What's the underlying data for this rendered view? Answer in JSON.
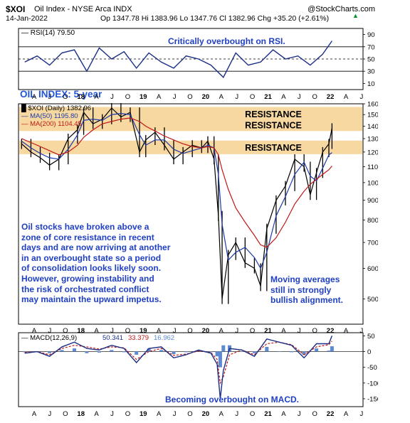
{
  "header": {
    "symbol": "$XOI",
    "name": "Oil Index - NYSE Arca INDX",
    "source": "@StockCharts.com",
    "date": "14-Jan-2022",
    "quote": "Op 1347.78  Hi 1383.96  Lo 1347.76  Cl 1382.96  Chg +35.20 (+2.61%)",
    "quote_marker": "▲"
  },
  "colors": {
    "price": "#000000",
    "ma50": "#1e3aa8",
    "ma200": "#c01818",
    "rsi": "#1a2e86",
    "macd": "#1a2e86",
    "signal": "#c01818",
    "hist": "#5e8ad2",
    "resistance": "#f6d8a0",
    "annotation": "#1f3fc4",
    "chart_title": "#2454d6"
  },
  "panels": {
    "rsi": {
      "legend": "RSI(14) 79.50",
      "note": "Critically overbought on RSI.",
      "ticks": [
        "90",
        "70",
        "50",
        "30",
        "10"
      ]
    },
    "price": {
      "title": "OIL INDEX: 5-year",
      "legend": [
        "$XOI (Daily) 1382.96",
        "MA(50) 1195.80",
        "MA(200) 1104.45"
      ],
      "zone_labels": [
        "RESISTANCE",
        "RESISTANCE",
        "RESISTANCE"
      ],
      "ticks": [
        "1600",
        "1500",
        "1400",
        "1300",
        "1200",
        "1100",
        "1000",
        "900",
        "800",
        "700",
        "600",
        "500"
      ],
      "note_left": [
        "Oil stocks have broken above a",
        "zone of core resistance in recent",
        "days and are now arriving at another",
        "in an overbought state so a period",
        "of consolidation looks likely soon.",
        "However, growing instability and",
        "the risk of orchestrated conflict",
        "may maintain the upward  impetus."
      ],
      "note_right": [
        "Moving averages",
        "still in strongly",
        "bullish alignment."
      ]
    },
    "macd": {
      "legend_label": "MACD(12,26,9)",
      "legend_values": [
        "50.341",
        "33.379",
        "16.962"
      ],
      "note": "Becoming overbought on MACD.",
      "ticks": [
        "50",
        "0",
        "-50",
        "-100",
        "-150"
      ]
    },
    "x_axis": [
      "A",
      "J",
      "O",
      "18",
      "A",
      "J",
      "O",
      "19",
      "A",
      "J",
      "O",
      "20",
      "A",
      "J",
      "O",
      "21",
      "A",
      "J",
      "O",
      "22",
      "A",
      "J"
    ]
  },
  "chart_data": [
    {
      "type": "line",
      "title": "RSI(14)",
      "ylim": [
        0,
        100
      ],
      "reference_lines": [
        70,
        50,
        30
      ],
      "x": [
        2017.1,
        2017.3,
        2017.5,
        2017.7,
        2017.9,
        2018.1,
        2018.3,
        2018.5,
        2018.7,
        2018.9,
        2019.1,
        2019.3,
        2019.5,
        2019.7,
        2019.9,
        2020.1,
        2020.3,
        2020.5,
        2020.7,
        2020.9,
        2021.1,
        2021.3,
        2021.5,
        2021.7,
        2021.9,
        2022.05
      ],
      "series": [
        {
          "name": "RSI(14)",
          "values": [
            45,
            55,
            40,
            60,
            65,
            30,
            68,
            50,
            62,
            35,
            60,
            45,
            35,
            55,
            50,
            40,
            20,
            60,
            40,
            45,
            65,
            50,
            55,
            40,
            58,
            79.5
          ]
        }
      ]
    },
    {
      "type": "line",
      "title": "OIL INDEX: 5-year",
      "ylim": [
        430,
        1600
      ],
      "y_scale": "log",
      "bands": [
        [
          1570,
          1445
        ],
        [
          1460,
          1360
        ],
        [
          1285,
          1185
        ]
      ],
      "x": [
        2017.05,
        2017.2,
        2017.35,
        2017.5,
        2017.65,
        2017.8,
        2017.95,
        2018.05,
        2018.2,
        2018.35,
        2018.5,
        2018.65,
        2018.8,
        2018.95,
        2019.05,
        2019.2,
        2019.35,
        2019.5,
        2019.65,
        2019.8,
        2019.95,
        2020.05,
        2020.15,
        2020.22,
        2020.28,
        2020.38,
        2020.5,
        2020.65,
        2020.8,
        2020.9,
        2021.0,
        2021.15,
        2021.3,
        2021.45,
        2021.6,
        2021.7,
        2021.8,
        2021.9,
        2022.0,
        2022.05
      ],
      "series": [
        {
          "name": "$XOI (Daily)",
          "values": [
            1260,
            1200,
            1160,
            1110,
            1150,
            1300,
            1370,
            1520,
            1420,
            1460,
            1560,
            1480,
            1520,
            1200,
            1290,
            1350,
            1250,
            1150,
            1200,
            1250,
            1230,
            1280,
            1150,
            820,
            500,
            650,
            700,
            620,
            600,
            540,
            760,
            900,
            980,
            1150,
            1100,
            930,
            1060,
            1200,
            1260,
            1383
          ]
        },
        {
          "name": "MA(50)",
          "values": [
            1280,
            1230,
            1190,
            1160,
            1150,
            1220,
            1330,
            1450,
            1460,
            1450,
            1500,
            1510,
            1500,
            1330,
            1250,
            1290,
            1290,
            1220,
            1190,
            1210,
            1230,
            1250,
            1230,
            1050,
            780,
            630,
            660,
            680,
            640,
            600,
            660,
            820,
            920,
            1050,
            1130,
            1040,
            1010,
            1090,
            1180,
            1196
          ]
        },
        {
          "name": "MA(200)",
          "values": [
            1300,
            1270,
            1240,
            1210,
            1180,
            1200,
            1250,
            1310,
            1370,
            1420,
            1440,
            1460,
            1470,
            1440,
            1400,
            1360,
            1320,
            1290,
            1260,
            1240,
            1230,
            1240,
            1230,
            1180,
            1080,
            960,
            860,
            790,
            730,
            690,
            680,
            720,
            790,
            880,
            950,
            990,
            1020,
            1050,
            1080,
            1104
          ]
        }
      ]
    },
    {
      "type": "line",
      "title": "MACD(12,26,9)",
      "ylim": [
        -175,
        60
      ],
      "x": [
        2017.1,
        2017.3,
        2017.5,
        2017.7,
        2017.9,
        2018.1,
        2018.3,
        2018.5,
        2018.7,
        2018.9,
        2019.1,
        2019.3,
        2019.5,
        2019.7,
        2019.9,
        2020.1,
        2020.2,
        2020.25,
        2020.3,
        2020.4,
        2020.6,
        2020.8,
        2021.0,
        2021.2,
        2021.4,
        2021.6,
        2021.8,
        2022.0,
        2022.05
      ],
      "series": [
        {
          "name": "MACD",
          "values": [
            -5,
            0,
            -15,
            15,
            30,
            10,
            5,
            20,
            10,
            -35,
            10,
            15,
            -20,
            -10,
            5,
            -5,
            -40,
            -150,
            -60,
            10,
            5,
            -15,
            40,
            30,
            20,
            -20,
            25,
            25,
            50.341
          ]
        },
        {
          "name": "Signal",
          "values": [
            -3,
            0,
            -10,
            10,
            20,
            15,
            8,
            15,
            12,
            -25,
            0,
            10,
            -12,
            -8,
            2,
            -3,
            -25,
            -100,
            -80,
            -10,
            5,
            -10,
            25,
            30,
            22,
            -10,
            15,
            22,
            33.379
          ]
        },
        {
          "name": "Histogram",
          "values": [
            -2,
            0,
            -5,
            5,
            10,
            -5,
            -3,
            5,
            -2,
            -10,
            10,
            5,
            -8,
            -2,
            3,
            -2,
            -15,
            -50,
            20,
            20,
            0,
            -5,
            15,
            0,
            -2,
            -10,
            10,
            3,
            16.962
          ]
        }
      ]
    }
  ]
}
